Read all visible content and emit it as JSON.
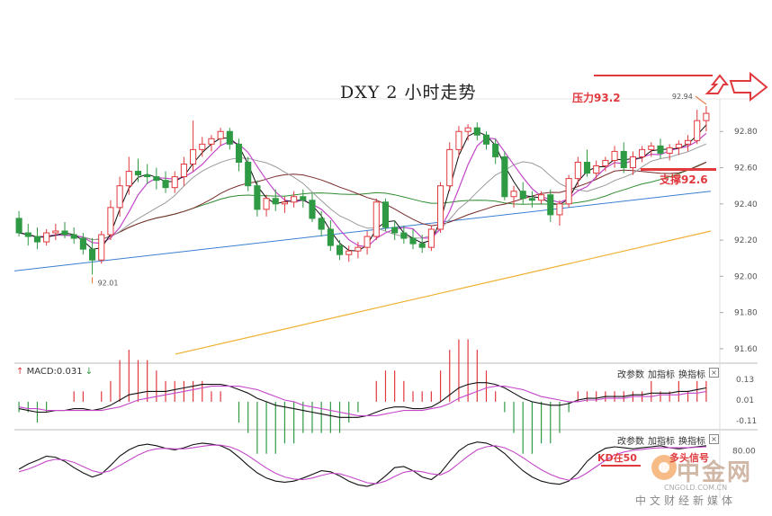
{
  "header": {
    "title": "DXY 2 小时走势"
  },
  "annotations": {
    "resistance_label": "压力93.2",
    "support_label": "支撑92.6",
    "low_label": "92.01",
    "high_label": "92.94",
    "kd_note_a": "KD在50",
    "kd_note_b": "多头",
    "kd_note_c": "信号"
  },
  "price_axis": {
    "ticks": [
      "92.80",
      "92.60",
      "92.40",
      "92.20",
      "92.00",
      "91.80",
      "91.60"
    ]
  },
  "macd_panel": {
    "label": "MACD:0.031",
    "up_arrow": "↑",
    "down_arrow": "↓",
    "ticks": [
      "0.13",
      "0.01",
      "-0.11"
    ]
  },
  "kd_panel": {
    "ticks": [
      "80.00"
    ]
  },
  "toolbar": {
    "params_label": "改参数",
    "add_label": "加指标",
    "switch_label": "换指标",
    "close_label": "×"
  },
  "watermark": {
    "brand": "中金网",
    "url": "CNGOLD.COM.CN",
    "sub": "中文财经新媒体"
  },
  "colors": {
    "up": "#e0393e",
    "down": "#2f9a44",
    "ma_short": "#111111",
    "ma_mid": "#c447c9",
    "ma_gray": "#9a9a9a",
    "ma_brown": "#7a2a2a",
    "ma_green": "#2f8a2f",
    "ma_blue": "#3a7fd0",
    "ma_orange": "#f0b030",
    "dif": "#111111",
    "dea": "#c447c9",
    "k": "#111111",
    "d": "#c447c9"
  },
  "chart_data": {
    "type": "candlestick",
    "title": "DXY 2 小时走势",
    "ylim": [
      91.55,
      92.97
    ],
    "support": 92.6,
    "resistance": 93.2,
    "low_marker": 92.01,
    "high_marker": 92.94,
    "candles": [
      [
        92.32,
        92.36,
        92.22,
        92.24
      ],
      [
        92.24,
        92.29,
        92.17,
        92.22
      ],
      [
        92.22,
        92.27,
        92.15,
        92.19
      ],
      [
        92.19,
        92.26,
        92.17,
        92.24
      ],
      [
        92.24,
        92.29,
        92.2,
        92.25
      ],
      [
        92.25,
        92.3,
        92.21,
        92.23
      ],
      [
        92.23,
        92.27,
        92.18,
        92.21
      ],
      [
        92.21,
        92.24,
        92.12,
        92.15
      ],
      [
        92.15,
        92.21,
        92.01,
        92.09
      ],
      [
        92.09,
        92.25,
        92.07,
        92.23
      ],
      [
        92.23,
        92.42,
        92.2,
        92.38
      ],
      [
        92.38,
        92.55,
        92.33,
        92.5
      ],
      [
        92.5,
        92.66,
        92.45,
        92.58
      ],
      [
        92.58,
        92.65,
        92.52,
        92.56
      ],
      [
        92.56,
        92.62,
        92.51,
        92.55
      ],
      [
        92.55,
        92.6,
        92.48,
        92.53
      ],
      [
        92.53,
        92.58,
        92.46,
        92.49
      ],
      [
        92.49,
        92.58,
        92.46,
        92.55
      ],
      [
        92.55,
        92.66,
        92.5,
        92.62
      ],
      [
        92.62,
        92.86,
        92.58,
        92.7
      ],
      [
        92.7,
        92.77,
        92.66,
        92.73
      ],
      [
        92.73,
        92.78,
        92.69,
        92.76
      ],
      [
        92.76,
        92.82,
        92.72,
        92.8
      ],
      [
        92.8,
        92.82,
        92.7,
        92.73
      ],
      [
        92.73,
        92.76,
        92.58,
        92.63
      ],
      [
        92.63,
        92.66,
        92.47,
        92.5
      ],
      [
        92.5,
        92.53,
        92.33,
        92.37
      ],
      [
        92.37,
        92.45,
        92.33,
        92.43
      ],
      [
        92.43,
        92.48,
        92.36,
        92.4
      ],
      [
        92.4,
        92.44,
        92.35,
        92.41
      ],
      [
        92.41,
        92.47,
        92.38,
        92.44
      ],
      [
        92.44,
        92.48,
        92.38,
        92.42
      ],
      [
        92.42,
        92.46,
        92.3,
        92.32
      ],
      [
        92.32,
        92.36,
        92.22,
        92.26
      ],
      [
        92.26,
        92.31,
        92.14,
        92.17
      ],
      [
        92.17,
        92.2,
        92.09,
        92.12
      ],
      [
        92.12,
        92.17,
        92.08,
        92.14
      ],
      [
        92.14,
        92.19,
        92.1,
        92.16
      ],
      [
        92.16,
        92.25,
        92.12,
        92.22
      ],
      [
        92.22,
        92.43,
        92.2,
        92.41
      ],
      [
        92.41,
        92.43,
        92.25,
        92.27
      ],
      [
        92.27,
        92.31,
        92.2,
        92.24
      ],
      [
        92.24,
        92.28,
        92.18,
        92.21
      ],
      [
        92.21,
        92.26,
        92.15,
        92.18
      ],
      [
        92.18,
        92.23,
        92.13,
        92.16
      ],
      [
        92.16,
        92.28,
        92.14,
        92.26
      ],
      [
        92.26,
        92.52,
        92.24,
        92.5
      ],
      [
        92.5,
        92.74,
        92.47,
        92.7
      ],
      [
        92.7,
        92.83,
        92.66,
        92.8
      ],
      [
        92.8,
        92.84,
        92.75,
        92.82
      ],
      [
        92.82,
        92.85,
        92.75,
        92.78
      ],
      [
        92.78,
        92.8,
        92.7,
        92.73
      ],
      [
        92.73,
        92.76,
        92.62,
        92.66
      ],
      [
        92.66,
        92.69,
        92.42,
        92.44
      ],
      [
        92.44,
        92.5,
        92.38,
        92.47
      ],
      [
        92.47,
        92.52,
        92.4,
        92.43
      ],
      [
        92.43,
        92.47,
        92.38,
        92.42
      ],
      [
        92.42,
        92.47,
        92.4,
        92.45
      ],
      [
        92.45,
        92.48,
        92.3,
        92.34
      ],
      [
        92.34,
        92.42,
        92.28,
        92.4
      ],
      [
        92.4,
        92.56,
        92.38,
        92.54
      ],
      [
        92.54,
        92.66,
        92.5,
        92.63
      ],
      [
        92.63,
        92.7,
        92.55,
        92.57
      ],
      [
        92.57,
        92.64,
        92.54,
        92.61
      ],
      [
        92.61,
        92.66,
        92.58,
        92.64
      ],
      [
        92.64,
        92.72,
        92.6,
        92.69
      ],
      [
        92.69,
        92.74,
        92.57,
        92.6
      ],
      [
        92.6,
        92.69,
        92.56,
        92.66
      ],
      [
        92.66,
        92.72,
        92.63,
        92.7
      ],
      [
        92.7,
        92.74,
        92.66,
        92.72
      ],
      [
        92.72,
        92.76,
        92.65,
        92.68
      ],
      [
        92.68,
        92.73,
        92.64,
        92.71
      ],
      [
        92.71,
        92.75,
        92.67,
        92.73
      ],
      [
        92.73,
        92.78,
        92.69,
        92.75
      ],
      [
        92.75,
        92.92,
        92.73,
        92.86
      ],
      [
        92.86,
        92.94,
        92.8,
        92.9
      ]
    ],
    "ma_long_start": 91.57,
    "ma_long_end": 92.25,
    "ma_blue_start": 92.03,
    "ma_blue_end": 92.47,
    "macd": {
      "ylim": [
        -0.13,
        0.15
      ],
      "dif": [
        -0.04,
        -0.05,
        -0.06,
        -0.06,
        -0.05,
        -0.05,
        -0.04,
        -0.04,
        -0.05,
        -0.04,
        -0.02,
        0.01,
        0.04,
        0.05,
        0.06,
        0.06,
        0.06,
        0.07,
        0.08,
        0.09,
        0.1,
        0.1,
        0.1,
        0.09,
        0.07,
        0.05,
        0.02,
        0.0,
        -0.02,
        -0.03,
        -0.04,
        -0.05,
        -0.06,
        -0.07,
        -0.08,
        -0.09,
        -0.09,
        -0.09,
        -0.08,
        -0.06,
        -0.04,
        -0.03,
        -0.03,
        -0.04,
        -0.04,
        -0.03,
        0.0,
        0.04,
        0.08,
        0.1,
        0.11,
        0.11,
        0.1,
        0.08,
        0.05,
        0.02,
        0.0,
        -0.01,
        -0.02,
        -0.02,
        -0.01,
        0.01,
        0.02,
        0.02,
        0.03,
        0.03,
        0.03,
        0.04,
        0.04,
        0.05,
        0.05,
        0.05,
        0.06,
        0.06,
        0.07,
        0.08
      ],
      "dea": [
        -0.03,
        -0.04,
        -0.04,
        -0.05,
        -0.05,
        -0.05,
        -0.05,
        -0.05,
        -0.05,
        -0.05,
        -0.04,
        -0.03,
        -0.01,
        0.01,
        0.02,
        0.03,
        0.04,
        0.05,
        0.06,
        0.07,
        0.08,
        0.09,
        0.09,
        0.09,
        0.09,
        0.08,
        0.07,
        0.05,
        0.03,
        0.01,
        0.0,
        -0.02,
        -0.03,
        -0.04,
        -0.05,
        -0.06,
        -0.07,
        -0.08,
        -0.08,
        -0.08,
        -0.07,
        -0.06,
        -0.05,
        -0.05,
        -0.05,
        -0.04,
        -0.03,
        -0.01,
        0.02,
        0.04,
        0.06,
        0.08,
        0.09,
        0.09,
        0.08,
        0.07,
        0.05,
        0.03,
        0.02,
        0.01,
        0.0,
        0.0,
        0.01,
        0.01,
        0.02,
        0.02,
        0.02,
        0.03,
        0.03,
        0.03,
        0.04,
        0.04,
        0.04,
        0.05,
        0.05,
        0.06
      ]
    },
    "kd": {
      "ylim": [
        0,
        100
      ],
      "k": [
        45,
        55,
        62,
        70,
        68,
        60,
        48,
        38,
        30,
        36,
        52,
        70,
        82,
        90,
        93,
        90,
        85,
        82,
        86,
        92,
        95,
        93,
        90,
        82,
        68,
        52,
        38,
        28,
        22,
        20,
        22,
        28,
        35,
        42,
        40,
        32,
        22,
        15,
        12,
        18,
        32,
        48,
        50,
        42,
        30,
        25,
        38,
        60,
        80,
        92,
        97,
        95,
        88,
        75,
        58,
        42,
        30,
        22,
        18,
        16,
        22,
        38,
        60,
        75,
        85,
        88,
        86,
        84,
        86,
        88,
        90,
        86,
        84,
        86,
        88,
        90
      ],
      "d": [
        40,
        45,
        52,
        60,
        64,
        63,
        58,
        50,
        42,
        38,
        42,
        52,
        62,
        72,
        80,
        84,
        85,
        84,
        84,
        86,
        89,
        91,
        91,
        88,
        81,
        71,
        59,
        47,
        37,
        30,
        26,
        25,
        28,
        33,
        37,
        36,
        31,
        25,
        19,
        17,
        22,
        31,
        39,
        42,
        40,
        36,
        34,
        42,
        56,
        70,
        82,
        88,
        90,
        86,
        78,
        67,
        55,
        44,
        35,
        28,
        24,
        28,
        38,
        50,
        62,
        72,
        78,
        81,
        83,
        85,
        86,
        86,
        86,
        86,
        87,
        88
      ]
    }
  }
}
